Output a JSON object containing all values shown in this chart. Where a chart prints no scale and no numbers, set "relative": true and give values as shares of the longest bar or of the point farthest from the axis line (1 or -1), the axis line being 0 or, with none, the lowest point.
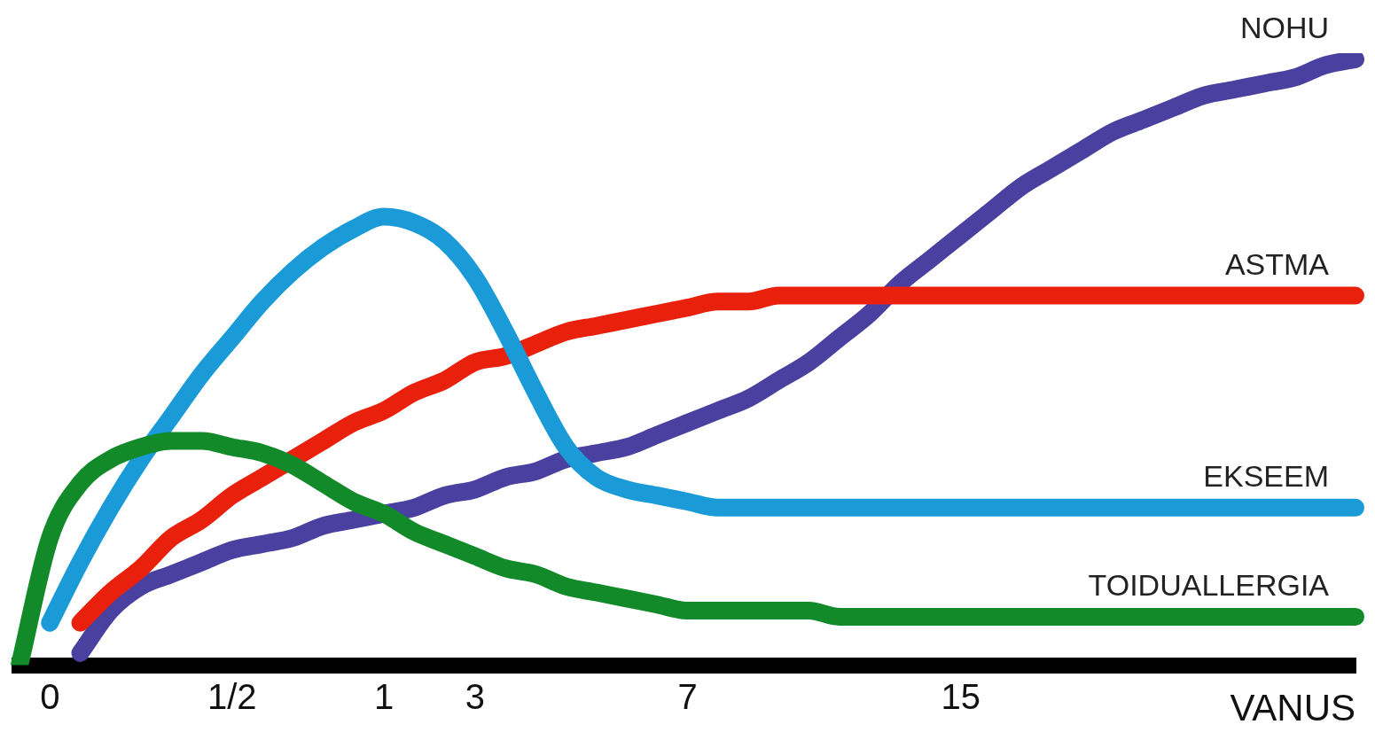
{
  "chart_data": {
    "type": "line",
    "relative": true,
    "xlabel": "VANUS",
    "legend": false,
    "grid": false,
    "marker": "none",
    "line_style": "solid",
    "categories": [
      null,
      "0",
      null,
      null,
      null,
      null,
      null,
      "1/2",
      null,
      null,
      null,
      null,
      "1",
      null,
      null,
      "3",
      null,
      null,
      null,
      null,
      null,
      null,
      "7",
      null,
      null,
      null,
      null,
      null,
      null,
      null,
      null,
      "15",
      null,
      null,
      null,
      null,
      null,
      null,
      null,
      null,
      null,
      null,
      null,
      null,
      null
    ],
    "series": [
      {
        "name": "TOIDUALLERGIA",
        "color": "#138a2a",
        "values": [
          0,
          0.21,
          0.3,
          0.34,
          0.36,
          0.37,
          0.37,
          0.36,
          0.35,
          0.33,
          0.3,
          0.27,
          0.25,
          0.22,
          0.2,
          0.18,
          0.16,
          0.15,
          0.13,
          0.12,
          0.11,
          0.1,
          0.09,
          0.09,
          0.09,
          0.09,
          0.09,
          0.08,
          0.08,
          0.08,
          0.08,
          0.08,
          0.08,
          0.08,
          0.08,
          0.08,
          0.08,
          0.08,
          0.08,
          0.08,
          0.08,
          0.08,
          0.08,
          0.08,
          0.08
        ]
      },
      {
        "name": "EKSEEM",
        "color": "#1a9ad6",
        "values": [
          null,
          0.07,
          0.17,
          0.26,
          0.34,
          0.41,
          0.48,
          0.54,
          0.6,
          0.65,
          0.69,
          0.72,
          0.74,
          0.73,
          0.7,
          0.64,
          0.55,
          0.45,
          0.36,
          0.31,
          0.29,
          0.28,
          0.27,
          0.26,
          0.26,
          0.26,
          0.26,
          0.26,
          0.26,
          0.26,
          0.26,
          0.26,
          0.26,
          0.26,
          0.26,
          0.26,
          0.26,
          0.26,
          0.26,
          0.26,
          0.26,
          0.26,
          0.26,
          0.26,
          0.26
        ]
      },
      {
        "name": "ASTMA",
        "color": "#e8200c",
        "values": [
          null,
          null,
          0.07,
          0.12,
          0.16,
          0.21,
          0.24,
          0.28,
          0.31,
          0.34,
          0.37,
          0.4,
          0.42,
          0.45,
          0.47,
          0.5,
          0.51,
          0.53,
          0.55,
          0.56,
          0.57,
          0.58,
          0.59,
          0.6,
          0.6,
          0.61,
          0.61,
          0.61,
          0.61,
          0.61,
          0.61,
          0.61,
          0.61,
          0.61,
          0.61,
          0.61,
          0.61,
          0.61,
          0.61,
          0.61,
          0.61,
          0.61,
          0.61,
          0.61,
          0.61
        ]
      },
      {
        "name": "NOHU",
        "color": "#4a40a0",
        "values": [
          null,
          null,
          0.02,
          0.09,
          0.13,
          0.15,
          0.17,
          0.19,
          0.2,
          0.21,
          0.23,
          0.24,
          0.25,
          0.26,
          0.28,
          0.29,
          0.31,
          0.32,
          0.34,
          0.35,
          0.36,
          0.38,
          0.4,
          0.42,
          0.44,
          0.47,
          0.5,
          0.54,
          0.58,
          0.63,
          0.67,
          0.71,
          0.75,
          0.79,
          0.82,
          0.85,
          0.88,
          0.9,
          0.92,
          0.94,
          0.95,
          0.96,
          0.97,
          0.99,
          1.0
        ]
      }
    ]
  }
}
